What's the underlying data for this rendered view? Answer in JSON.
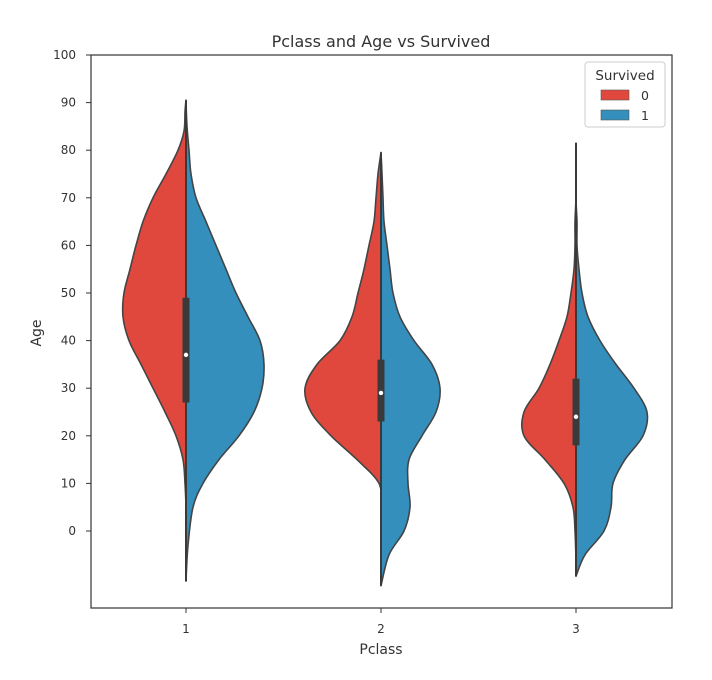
{
  "chart_data": {
    "type": "violin",
    "title": "Pclass and Age vs Survived",
    "xlabel": "Pclass",
    "ylabel": "Age",
    "categories": [
      "1",
      "2",
      "3"
    ],
    "y_ticks": [
      "100",
      "90",
      "80",
      "70",
      "60",
      "50",
      "40",
      "30",
      "20",
      "10",
      "0"
    ],
    "y_tick_values": [
      100,
      90,
      80,
      70,
      60,
      50,
      40,
      30,
      20,
      10,
      0
    ],
    "ylim": [
      -17,
      105
    ],
    "grid": false,
    "split": true,
    "legend": {
      "title": "Survived",
      "position": "top-right",
      "entries": [
        {
          "label": "0",
          "color": "#e0483e"
        },
        {
          "label": "1",
          "color": "#348fbc"
        }
      ]
    },
    "series": [
      {
        "name": "0",
        "color": "#e0483e",
        "side": "left",
        "violins": [
          {
            "category": "1",
            "profile": [
              [
                -10.5,
                0
              ],
              [
                -6,
                0
              ],
              [
                0,
                0
              ],
              [
                5,
                0
              ],
              [
                10,
                1
              ],
              [
                15,
                3
              ],
              [
                20,
                10
              ],
              [
                25,
                21
              ],
              [
                30,
                33
              ],
              [
                35,
                45
              ],
              [
                40,
                57
              ],
              [
                45,
                63
              ],
              [
                50,
                62
              ],
              [
                55,
                56
              ],
              [
                60,
                50
              ],
              [
                65,
                43
              ],
              [
                70,
                33
              ],
              [
                75,
                20
              ],
              [
                80,
                8
              ],
              [
                84,
                2
              ],
              [
                88,
                1
              ],
              [
                90.5,
                0
              ]
            ]
          },
          {
            "category": "2",
            "profile": [
              [
                5,
                0
              ],
              [
                10,
                2
              ],
              [
                15,
                24
              ],
              [
                20,
                50
              ],
              [
                25,
                70
              ],
              [
                30,
                76
              ],
              [
                35,
                64
              ],
              [
                40,
                41
              ],
              [
                45,
                29
              ],
              [
                50,
                23
              ],
              [
                55,
                17
              ],
              [
                60,
                12
              ],
              [
                65,
                7
              ],
              [
                70,
                5
              ],
              [
                75,
                3
              ],
              [
                79.5,
                0
              ]
            ]
          },
          {
            "category": "3",
            "profile": [
              [
                -6,
                0
              ],
              [
                0,
                1
              ],
              [
                5,
                3
              ],
              [
                10,
                12
              ],
              [
                15,
                31
              ],
              [
                20,
                52
              ],
              [
                25,
                52
              ],
              [
                30,
                37
              ],
              [
                35,
                26
              ],
              [
                40,
                17
              ],
              [
                45,
                9
              ],
              [
                50,
                5
              ],
              [
                55,
                2
              ],
              [
                60,
                1
              ],
              [
                65,
                1
              ],
              [
                70,
                0
              ],
              [
                75,
                0
              ],
              [
                81.5,
                0
              ]
            ]
          }
        ]
      },
      {
        "name": "1",
        "color": "#348fbc",
        "side": "right",
        "violins": [
          {
            "category": "1",
            "profile": [
              [
                -10.5,
                0
              ],
              [
                -3,
                2
              ],
              [
                5,
                7
              ],
              [
                10,
                17
              ],
              [
                15,
                33
              ],
              [
                20,
                53
              ],
              [
                25,
                68
              ],
              [
                30,
                76
              ],
              [
                35,
                78
              ],
              [
                40,
                74
              ],
              [
                45,
                62
              ],
              [
                50,
                50
              ],
              [
                55,
                40
              ],
              [
                60,
                30
              ],
              [
                65,
                20
              ],
              [
                70,
                10
              ],
              [
                75,
                5
              ],
              [
                80,
                3
              ],
              [
                85,
                1
              ],
              [
                90,
                0
              ]
            ]
          },
          {
            "category": "2",
            "profile": [
              [
                -11.5,
                0
              ],
              [
                -5,
                8
              ],
              [
                0,
                23
              ],
              [
                5,
                29
              ],
              [
                10,
                27
              ],
              [
                15,
                28
              ],
              [
                20,
                41
              ],
              [
                25,
                55
              ],
              [
                30,
                59
              ],
              [
                35,
                51
              ],
              [
                40,
                33
              ],
              [
                45,
                19
              ],
              [
                50,
                12
              ],
              [
                55,
                9
              ],
              [
                60,
                6
              ],
              [
                65,
                3
              ],
              [
                70,
                2
              ],
              [
                75,
                1
              ],
              [
                79.5,
                0
              ]
            ]
          },
          {
            "category": "3",
            "profile": [
              [
                -9.5,
                0
              ],
              [
                -5,
                9
              ],
              [
                0,
                28
              ],
              [
                5,
                35
              ],
              [
                10,
                37
              ],
              [
                15,
                49
              ],
              [
                20,
                67
              ],
              [
                25,
                71
              ],
              [
                30,
                58
              ],
              [
                35,
                40
              ],
              [
                40,
                24
              ],
              [
                45,
                12
              ],
              [
                50,
                6
              ],
              [
                55,
                3
              ],
              [
                60,
                1
              ],
              [
                65,
                1
              ],
              [
                70,
                0
              ],
              [
                81,
                0
              ]
            ]
          }
        ]
      }
    ],
    "box": [
      {
        "category": "1",
        "q1": 27,
        "median": 37,
        "q3": 49
      },
      {
        "category": "2",
        "q1": 23,
        "median": 29,
        "q3": 36
      },
      {
        "category": "3",
        "q1": 18,
        "median": 24,
        "q3": 32
      }
    ]
  }
}
